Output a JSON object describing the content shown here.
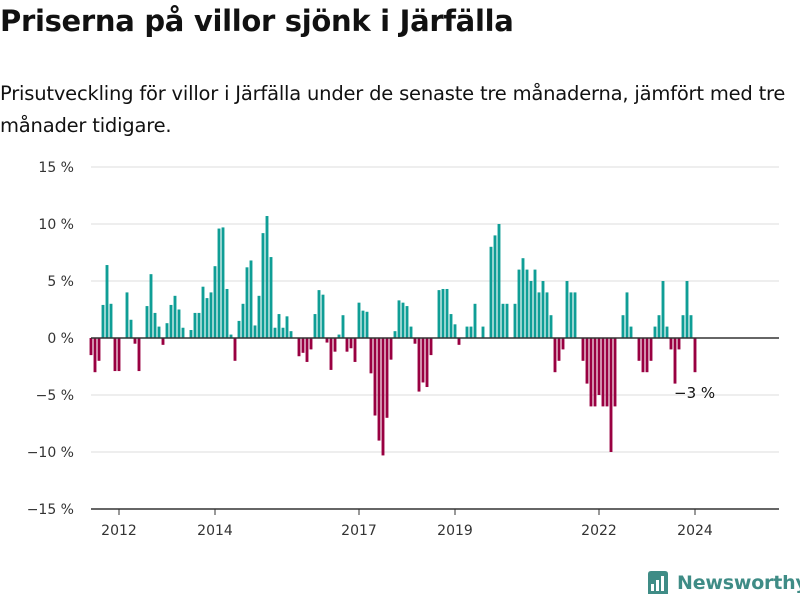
{
  "title": "Priserna på villor sjönk i Järfälla",
  "subtitle": "Prisutveckling för villor i Järfälla under de senaste tre månaderna, jämfört med tre månader tidigare.",
  "brand": {
    "name": "Newsworthy",
    "icon": "bar-chart-logo-icon"
  },
  "colors": {
    "positive": "#0f9e96",
    "negative": "#990041",
    "grid": "#dddddd",
    "axis": "#333333",
    "brand": "#3f8c86"
  },
  "chart_data": {
    "type": "bar",
    "unit": "%",
    "ylim": [
      -15,
      15
    ],
    "yticks": [
      {
        "value": 15,
        "label": "15 %"
      },
      {
        "value": 10,
        "label": "10 %"
      },
      {
        "value": 5,
        "label": "5 %"
      },
      {
        "value": 0,
        "label": "0 %"
      },
      {
        "value": -5,
        "label": "−5 %"
      },
      {
        "value": -10,
        "label": "−10 %"
      },
      {
        "value": -15,
        "label": "−15 %"
      }
    ],
    "xlim": [
      "2011-06",
      "2025-10"
    ],
    "xticks": [
      {
        "value": "2012-01",
        "label": "2012"
      },
      {
        "value": "2014-01",
        "label": "2014"
      },
      {
        "value": "2017-01",
        "label": "2017"
      },
      {
        "value": "2019-01",
        "label": "2019"
      },
      {
        "value": "2022-01",
        "label": "2022"
      },
      {
        "value": "2024-01",
        "label": "2024"
      }
    ],
    "grid": true,
    "legend": "none",
    "start": "2011-06",
    "frequency": "monthly",
    "values": [
      -1.5,
      -3,
      -2,
      2.9,
      6.4,
      3,
      -2.9,
      -2.9,
      0,
      4,
      1.6,
      -0.5,
      -2.9,
      0,
      2.8,
      5.6,
      2.2,
      1,
      -0.6,
      1.3,
      2.9,
      3.7,
      2.5,
      0.9,
      0,
      0.7,
      2.2,
      2.2,
      4.5,
      3.5,
      4,
      6.3,
      9.6,
      9.7,
      4.3,
      0.3,
      -2,
      1.5,
      3,
      6.2,
      6.8,
      1.1,
      3.7,
      9.2,
      10.7,
      7.1,
      0.9,
      2.1,
      0.9,
      1.9,
      0.6,
      0,
      -1.6,
      -1.3,
      -2.1,
      -1,
      2.1,
      4.2,
      3.8,
      -0.4,
      -2.8,
      -1.2,
      0.3,
      2,
      -1.2,
      -0.9,
      -2.1,
      3.1,
      2.4,
      2.3,
      -3.1,
      -6.8,
      -9,
      -10.3,
      -7,
      -1.9,
      0.6,
      3.3,
      3.1,
      2.8,
      1,
      -0.5,
      -4.7,
      -3.9,
      -4.3,
      -1.5,
      0,
      4.2,
      4.3,
      4.3,
      2.1,
      1.2,
      -0.6,
      0,
      1,
      1,
      3,
      0,
      1,
      0,
      8,
      9,
      10,
      3,
      3,
      0,
      3,
      6,
      7,
      6,
      5,
      6,
      4,
      5,
      4,
      2,
      -3,
      -2,
      -1,
      5,
      4,
      4,
      0,
      -2,
      -4,
      -6,
      -6,
      -5,
      -6,
      -6,
      -10,
      -6,
      0,
      2,
      4,
      1,
      0,
      -2,
      -3,
      -3,
      -2,
      1,
      2,
      5,
      1,
      -1,
      -4,
      -1,
      2,
      5,
      2,
      -3
    ],
    "annotations": [
      {
        "label": "−3 %",
        "value": -3,
        "at": "last"
      }
    ]
  }
}
